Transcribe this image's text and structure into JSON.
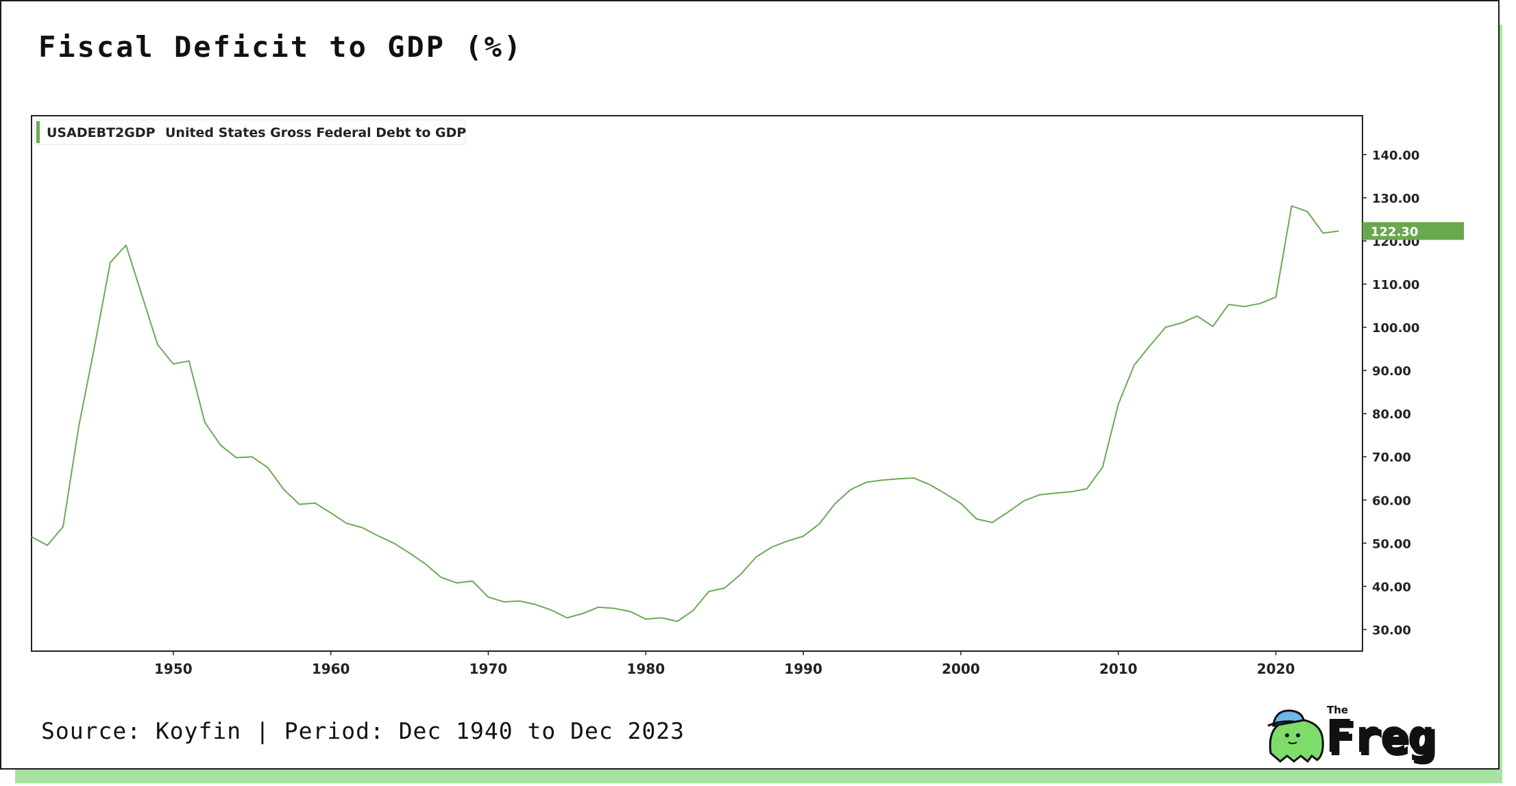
{
  "title": "Fiscal Deficit to GDP (%)",
  "source": "Source: Koyfin | Period: Dec 1940 to Dec 2023",
  "logo": {
    "small": "The",
    "word": "Freg"
  },
  "colors": {
    "line": "#6aaa56",
    "accent_shadow": "#a6e3a1",
    "label_bg": "#6aa84f"
  },
  "chart_data": {
    "type": "line",
    "legend": {
      "code": "USADEBT2GDP",
      "name": "United States Gross Federal Debt to GDP",
      "placement": "top-left"
    },
    "x_ticks": [
      "1950",
      "1960",
      "1970",
      "1980",
      "1990",
      "2000",
      "2010",
      "2020"
    ],
    "y_ticks": [
      "30.00",
      "40.00",
      "50.00",
      "60.00",
      "70.00",
      "80.00",
      "90.00",
      "100.00",
      "110.00",
      "120.00",
      "130.00",
      "140.00"
    ],
    "xlim": [
      1941,
      2025.5
    ],
    "ylim": [
      25,
      149
    ],
    "last_value_label": "122.30",
    "series": [
      {
        "x": [
          1941,
          1942,
          1943,
          1944,
          1945,
          1946,
          1947,
          1948,
          1949,
          1950,
          1951,
          1952,
          1953,
          1954,
          1955,
          1956,
          1957,
          1958,
          1959,
          1960,
          1961,
          1962,
          1963,
          1964,
          1965,
          1966,
          1967,
          1968,
          1969,
          1970,
          1971,
          1972,
          1973,
          1974,
          1975,
          1976,
          1977,
          1978,
          1979,
          1980,
          1981,
          1982,
          1983,
          1984,
          1985,
          1986,
          1987,
          1988,
          1989,
          1990,
          1991,
          1992,
          1993,
          1994,
          1995,
          1996,
          1997,
          1998,
          1999,
          2000,
          2001,
          2002,
          2003,
          2004,
          2005,
          2006,
          2007,
          2008,
          2009,
          2010,
          2011,
          2012,
          2013,
          2014,
          2015,
          2016,
          2017,
          2018,
          2019,
          2020,
          2021,
          2022,
          2023,
          2024
        ],
        "values": [
          51.5,
          49.5,
          53.8,
          77,
          95.5,
          115,
          119,
          107.5,
          96,
          91.5,
          92.2,
          78,
          72.7,
          69.8,
          70,
          67.5,
          62.5,
          59,
          59.3,
          57,
          54.6,
          53.6,
          51.7,
          50,
          47.7,
          45.2,
          42.1,
          40.8,
          41.2,
          37.5,
          36.4,
          36.6,
          35.8,
          34.5,
          32.7,
          33.7,
          35.2,
          34.9,
          34.2,
          32.4,
          32.7,
          31.9,
          34.4,
          38.8,
          39.6,
          42.7,
          46.8,
          49.1,
          50.5,
          51.6,
          54.4,
          59.1,
          62.4,
          64.1,
          64.6,
          64.9,
          65.1,
          63.6,
          61.5,
          59.2,
          55.6,
          54.8,
          57.2,
          59.8,
          61.2,
          61.6,
          61.9,
          62.6,
          67.6,
          82.2,
          91.2,
          95.7,
          100,
          101,
          102.6,
          100.2,
          105.3,
          104.8,
          105.5,
          107,
          128.1,
          126.8,
          121.8,
          122.3
        ]
      }
    ]
  }
}
